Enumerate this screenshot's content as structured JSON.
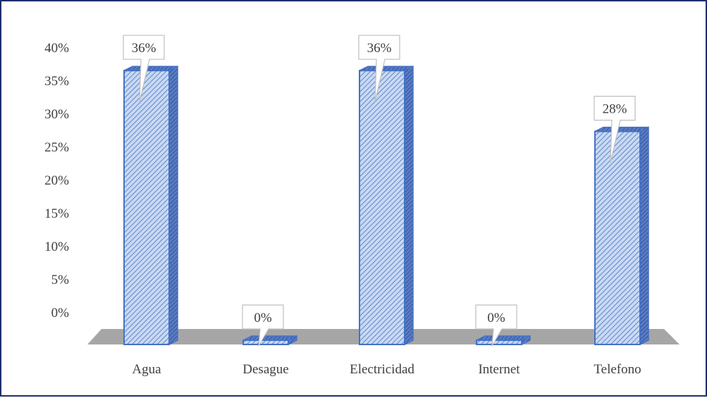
{
  "chart_data": {
    "type": "bar",
    "categories": [
      "Agua",
      "Desague",
      "Electricidad",
      "Internet",
      "Telefono"
    ],
    "values": [
      36,
      0,
      36,
      0,
      28
    ],
    "data_labels": [
      "36%",
      "0%",
      "36%",
      "0%",
      "28%"
    ],
    "y_ticks": [
      "0%",
      "5%",
      "10%",
      "15%",
      "20%",
      "25%",
      "30%",
      "35%",
      "40%"
    ],
    "ylim": [
      0,
      40
    ],
    "grid": false,
    "legend": "none",
    "colors": {
      "bar_fill": "#c9d9f2",
      "bar_hatch": "#4472c4",
      "bar_outline": "#4472c4",
      "bar_side": "#3a5ea8",
      "floor": "#a6a6a6",
      "frame": "#1f2f6b"
    }
  }
}
